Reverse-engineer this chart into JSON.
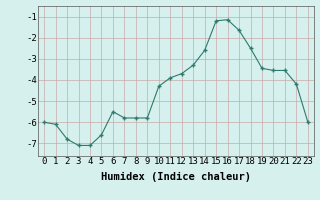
{
  "x": [
    0,
    1,
    2,
    3,
    4,
    5,
    6,
    7,
    8,
    9,
    10,
    11,
    12,
    13,
    14,
    15,
    16,
    17,
    18,
    19,
    20,
    21,
    22,
    23
  ],
  "y": [
    -6.0,
    -6.1,
    -6.8,
    -7.1,
    -7.1,
    -6.6,
    -5.5,
    -5.8,
    -5.8,
    -5.8,
    -4.3,
    -3.9,
    -3.7,
    -3.3,
    -2.6,
    -1.2,
    -1.15,
    -1.65,
    -2.5,
    -3.45,
    -3.55,
    -3.55,
    -4.2,
    -6.0
  ],
  "xlabel": "Humidex (Indice chaleur)",
  "xlim": [
    -0.5,
    23.5
  ],
  "ylim": [
    -7.6,
    -0.5
  ],
  "yticks": [
    -7,
    -6,
    -5,
    -4,
    -3,
    -2,
    -1
  ],
  "xticks": [
    0,
    1,
    2,
    3,
    4,
    5,
    6,
    7,
    8,
    9,
    10,
    11,
    12,
    13,
    14,
    15,
    16,
    17,
    18,
    19,
    20,
    21,
    22,
    23
  ],
  "bg_color": "#d6f0ee",
  "grid_color": "#c8aaaa",
  "line_color": "#2d7a6e",
  "marker_color": "#2d7a6e",
  "xlabel_fontsize": 7.5,
  "tick_fontsize": 6.5
}
